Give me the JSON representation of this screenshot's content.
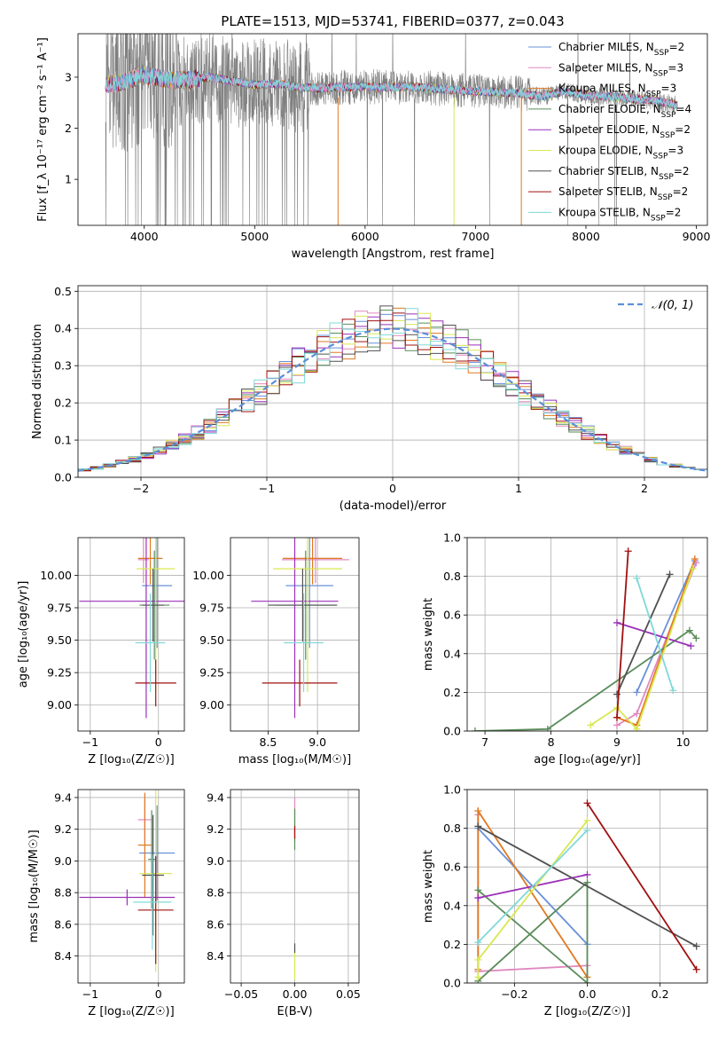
{
  "figure": {
    "title": "PLATE=1513, MJD=53741, FIBERID=0377, z=0.043",
    "series_names": [
      "Chabrier MILES",
      "Salpeter MILES",
      "Kroupa MILES",
      "Chabrier ELODIE",
      "Salpeter ELODIE",
      "Kroupa ELODIE",
      "Chabrier STELIB",
      "Salpeter STELIB",
      "Kroupa STELIB"
    ],
    "series_colors": [
      "#6890d8",
      "#e088c0",
      "#e07820",
      "#5a8c5a",
      "#9b30b8",
      "#d8e850",
      "#505050",
      "#a01010",
      "#80d8d8"
    ],
    "data_color": "#7f7f7f"
  },
  "chart_data": [
    {
      "id": "spectrum",
      "type": "line",
      "xlabel": "wavelength [Angstrom, rest frame]",
      "ylabel": "Flux [f_λ 10⁻¹⁷ erg cm⁻² s⁻¹ A⁻¹]",
      "xlim": [
        3400,
        9100
      ],
      "ylim": [
        0.1,
        3.85
      ],
      "xticks": [
        4000,
        5000,
        6000,
        7000,
        8000,
        9000
      ],
      "yticks": [
        1,
        2,
        3
      ],
      "legend_position": "right",
      "legend": [
        {
          "name": "Chabrier MILES",
          "nssp": "2"
        },
        {
          "name": "Salpeter MILES",
          "nssp": "3"
        },
        {
          "name": "Kroupa MILES",
          "nssp": "3"
        },
        {
          "name": "Chabrier ELODIE",
          "nssp": "4"
        },
        {
          "name": "Salpeter ELODIE",
          "nssp": "2"
        },
        {
          "name": "Kroupa ELODIE",
          "nssp": "3"
        },
        {
          "name": "Chabrier STELIB",
          "nssp": "2"
        },
        {
          "name": "Salpeter STELIB",
          "nssp": "2"
        },
        {
          "name": "Kroupa STELIB",
          "nssp": "2"
        }
      ],
      "data_range": [
        3650,
        8830
      ],
      "continuum": {
        "wavelength": [
          3650,
          3800,
          4000,
          4200,
          4400,
          4600,
          4800,
          5000,
          5200,
          5400,
          5600,
          5800,
          6000,
          6200,
          6400,
          6600,
          6800,
          7000,
          7200,
          7400,
          7600,
          7800,
          8000,
          8200,
          8400,
          8600,
          8830
        ],
        "flux": [
          2.85,
          2.9,
          3.05,
          2.95,
          2.95,
          3.0,
          2.92,
          2.85,
          2.88,
          2.8,
          2.78,
          2.8,
          2.82,
          2.8,
          2.82,
          2.78,
          2.75,
          2.72,
          2.7,
          2.68,
          2.62,
          2.72,
          2.65,
          2.62,
          2.58,
          2.55,
          2.45
        ]
      }
    },
    {
      "id": "residuals",
      "type": "histogram",
      "xlabel": "(data-model)/error",
      "ylabel": "Normed distribution",
      "xlim": [
        -2.5,
        2.5
      ],
      "ylim": [
        0,
        0.515
      ],
      "xticks": [
        -2,
        -1,
        0,
        1,
        2
      ],
      "yticks": [
        0.0,
        0.1,
        0.2,
        0.3,
        0.4,
        0.5
      ],
      "reference_label": "𝒩(0, 1)",
      "reference_color": "#5b8fd9",
      "bin_width": 0.1
    },
    {
      "id": "age-vs-Z",
      "type": "scatter",
      "xlabel": "Z [log₁₀(Z/Z☉)]",
      "ylabel": "age  [log₁₀(age/yr)]",
      "xlim": [
        -1.18,
        0.38
      ],
      "ylim": [
        8.8,
        10.29
      ],
      "xticks": [
        -1,
        0
      ],
      "yticks": [
        9.0,
        9.25,
        9.5,
        9.75,
        10.0
      ],
      "points": [
        {
          "c": 0,
          "x": -0.02,
          "y": 9.92,
          "xe": 0.22,
          "ye": 0.48
        },
        {
          "c": 1,
          "x": -0.22,
          "y": 10.12,
          "xe": 0.08,
          "ye": 0.18
        },
        {
          "c": 2,
          "x": -0.12,
          "y": 10.13,
          "xe": 0.18,
          "ye": 0.2
        },
        {
          "c": 3,
          "x": -0.06,
          "y": 9.77,
          "xe": 0.22,
          "ye": 0.42
        },
        {
          "c": 4,
          "x": -0.18,
          "y": 9.8,
          "xe": 0.98,
          "ye": 0.9
        },
        {
          "c": 5,
          "x": -0.04,
          "y": 10.05,
          "xe": 0.28,
          "ye": 0.95
        },
        {
          "c": 6,
          "x": -0.08,
          "y": 9.77,
          "xe": 0.16,
          "ye": 0.28
        },
        {
          "c": 7,
          "x": -0.04,
          "y": 9.17,
          "xe": 0.3,
          "ye": 0.18
        },
        {
          "c": 8,
          "x": -0.12,
          "y": 9.48,
          "xe": 0.22,
          "ye": 0.38
        }
      ]
    },
    {
      "id": "age-vs-mass",
      "type": "scatter",
      "xlabel": "mass [log₁₀(M/M☉)]",
      "ylabel": "",
      "xlim": [
        8.12,
        9.42
      ],
      "ylim": [
        8.8,
        10.29
      ],
      "xticks": [
        8.5,
        9.0
      ],
      "yticks": [
        9.0,
        9.25,
        9.5,
        9.75,
        10.0
      ],
      "points": [
        {
          "c": 0,
          "x": 8.92,
          "y": 9.92,
          "xe": 0.24,
          "ye": 0.48
        },
        {
          "c": 1,
          "x": 8.98,
          "y": 10.12,
          "xe": 0.34,
          "ye": 0.18
        },
        {
          "c": 2,
          "x": 8.95,
          "y": 10.13,
          "xe": 0.3,
          "ye": 0.2
        },
        {
          "c": 3,
          "x": 8.88,
          "y": 9.77,
          "xe": 0.3,
          "ye": 0.42
        },
        {
          "c": 4,
          "x": 8.77,
          "y": 9.8,
          "xe": 0.44,
          "ye": 0.9
        },
        {
          "c": 5,
          "x": 8.9,
          "y": 10.05,
          "xe": 0.35,
          "ye": 0.95
        },
        {
          "c": 6,
          "x": 8.85,
          "y": 9.77,
          "xe": 0.35,
          "ye": 0.28
        },
        {
          "c": 7,
          "x": 8.82,
          "y": 9.17,
          "xe": 0.38,
          "ye": 0.18
        },
        {
          "c": 8,
          "x": 8.86,
          "y": 9.48,
          "xe": 0.2,
          "ye": 0.38
        }
      ]
    },
    {
      "id": "weight-vs-age",
      "type": "line",
      "xlabel": "age  [log₁₀(age/yr)]",
      "ylabel": "mass weight",
      "xlim": [
        6.73,
        10.37
      ],
      "ylim": [
        0,
        1
      ],
      "xticks": [
        7,
        8,
        9,
        10
      ],
      "yticks": [
        0.0,
        0.2,
        0.4,
        0.6,
        0.8,
        1.0
      ],
      "series": [
        {
          "c": 0,
          "x": [
            9.3,
            10.18
          ],
          "y": [
            0.2,
            0.88
          ]
        },
        {
          "c": 1,
          "x": [
            9.0,
            9.3,
            10.2
          ],
          "y": [
            0.03,
            0.09,
            0.87
          ]
        },
        {
          "c": 2,
          "x": [
            9.0,
            9.3,
            10.18
          ],
          "y": [
            0.07,
            0.03,
            0.89
          ]
        },
        {
          "c": 3,
          "x": [
            6.85,
            7.95,
            10.1,
            10.2
          ],
          "y": [
            0.0,
            0.01,
            0.52,
            0.48
          ]
        },
        {
          "c": 4,
          "x": [
            9.0,
            10.12
          ],
          "y": [
            0.56,
            0.44
          ]
        },
        {
          "c": 5,
          "x": [
            8.6,
            9.0,
            9.3,
            10.15
          ],
          "y": [
            0.03,
            0.12,
            0.01,
            0.84
          ]
        },
        {
          "c": 6,
          "x": [
            9.0,
            9.8
          ],
          "y": [
            0.19,
            0.81
          ]
        },
        {
          "c": 7,
          "x": [
            9.0,
            9.17
          ],
          "y": [
            0.07,
            0.93
          ]
        },
        {
          "c": 8,
          "x": [
            9.3,
            9.85
          ],
          "y": [
            0.79,
            0.21
          ]
        }
      ]
    },
    {
      "id": "mass-vs-Z",
      "type": "scatter",
      "xlabel": "Z [log₁₀(Z/Z☉)]",
      "ylabel": "mass [log₁₀(M/M☉)]",
      "xlim": [
        -1.18,
        0.38
      ],
      "ylim": [
        8.23,
        9.45
      ],
      "xticks": [
        -1,
        0
      ],
      "yticks": [
        8.4,
        8.6,
        8.8,
        9.0,
        9.2,
        9.4
      ],
      "points": [
        {
          "c": 0,
          "x": -0.02,
          "y": 9.05,
          "xe": 0.26,
          "ye": 0.3
        },
        {
          "c": 1,
          "x": -0.2,
          "y": 9.26,
          "xe": 0.1,
          "ye": 0.14
        },
        {
          "c": 2,
          "x": -0.2,
          "y": 9.1,
          "xe": 0.1,
          "ye": 0.33
        },
        {
          "c": 3,
          "x": -0.1,
          "y": 9.01,
          "xe": 0.05,
          "ye": 0.31
        },
        {
          "c": 4,
          "x": -0.46,
          "y": 8.77,
          "xe": 0.7,
          "ye": 0.05
        },
        {
          "c": 5,
          "x": -0.04,
          "y": 8.92,
          "xe": 0.24,
          "ye": 0.62
        },
        {
          "c": 6,
          "x": -0.08,
          "y": 8.91,
          "xe": 0.16,
          "ye": 0.38
        },
        {
          "c": 7,
          "x": -0.04,
          "y": 8.69,
          "xe": 0.26,
          "ye": 0.34
        },
        {
          "c": 8,
          "x": -0.09,
          "y": 8.74,
          "xe": 0.28,
          "ye": 0.3
        }
      ]
    },
    {
      "id": "mass-vs-EBV",
      "type": "scatter",
      "xlabel": "E(B-V)",
      "ylabel": "",
      "xlim": [
        -0.06,
        0.06
      ],
      "ylim": [
        8.23,
        9.45
      ],
      "xticks": [
        -0.05,
        0.0,
        0.05
      ],
      "xticklabels": [
        "−0.05",
        "0.00",
        "0.05"
      ],
      "yticks": [
        8.4,
        8.6,
        8.8,
        9.0,
        9.2,
        9.4
      ],
      "points": [
        {
          "c": 1,
          "x": 0.0,
          "y": 9.26,
          "xe": 0,
          "ye": 0.14
        },
        {
          "c": 3,
          "x": 0.0,
          "y": 9.2,
          "xe": 0,
          "ye": 0.13
        },
        {
          "c": 7,
          "x": 0.0,
          "y": 9.18,
          "xe": 0,
          "ye": 0.04
        },
        {
          "c": 5,
          "x": 0.0,
          "y": 8.35,
          "xe": 0,
          "ye": 0.1
        },
        {
          "c": 6,
          "x": 0.0,
          "y": 8.45,
          "xe": 0,
          "ye": 0.03
        }
      ]
    },
    {
      "id": "weight-vs-Z",
      "type": "line",
      "xlabel": "Z [log₁₀(Z/Z☉)]",
      "ylabel": "mass weight",
      "xlim": [
        -0.33,
        0.33
      ],
      "ylim": [
        0,
        1
      ],
      "xticks": [
        -0.2,
        0.0,
        0.2
      ],
      "xticklabels": [
        "−0.2",
        "0.0",
        "0.2"
      ],
      "yticks": [
        0.0,
        0.2,
        0.4,
        0.6,
        0.8,
        1.0
      ],
      "series": [
        {
          "c": 0,
          "x": [
            -0.3,
            0.0
          ],
          "y": [
            0.8,
            0.2
          ]
        },
        {
          "c": 1,
          "x": [
            -0.3,
            -0.3,
            0.0
          ],
          "y": [
            0.87,
            0.06,
            0.09
          ]
        },
        {
          "c": 2,
          "x": [
            -0.3,
            -0.3,
            0.0
          ],
          "y": [
            0.07,
            0.89,
            0.03
          ]
        },
        {
          "c": 3,
          "x": [
            -0.3,
            0.0,
            0.0,
            -0.3
          ],
          "y": [
            0.48,
            0.0,
            0.52,
            0.01
          ]
        },
        {
          "c": 4,
          "x": [
            -0.3,
            0.0
          ],
          "y": [
            0.44,
            0.56
          ]
        },
        {
          "c": 5,
          "x": [
            -0.3,
            -0.3,
            0.0
          ],
          "y": [
            0.03,
            0.12,
            0.84
          ]
        },
        {
          "c": 6,
          "x": [
            -0.3,
            0.3
          ],
          "y": [
            0.81,
            0.19
          ]
        },
        {
          "c": 7,
          "x": [
            0.0,
            0.3
          ],
          "y": [
            0.93,
            0.07
          ]
        },
        {
          "c": 8,
          "x": [
            -0.3,
            0.0
          ],
          "y": [
            0.21,
            0.79
          ]
        }
      ]
    }
  ]
}
